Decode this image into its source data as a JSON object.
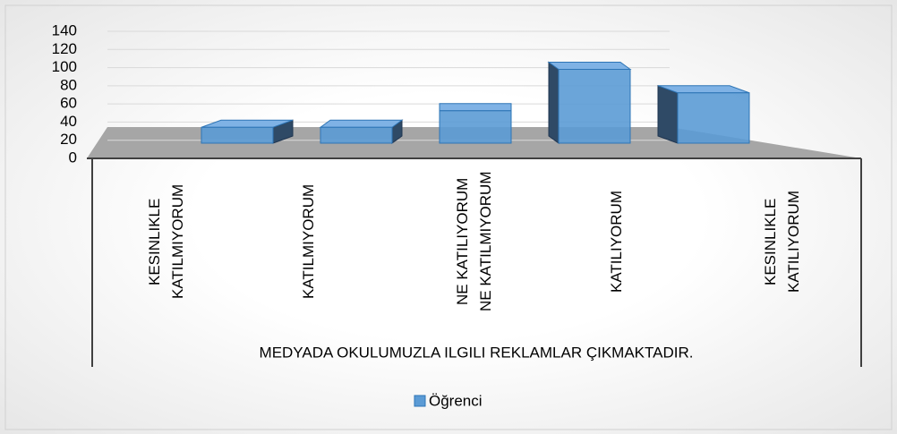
{
  "chart_data": {
    "type": "bar3d",
    "categories": [
      "KESINLIKLE KATILMIYORUM",
      "KATILMIYORUM",
      "NE KATILIYORUM NE KATILMIYORUM",
      "KATILIYORUM",
      "KESINLIKLE KATILIYORUM"
    ],
    "series": [
      {
        "name": "Öğrenci",
        "color": "#5b9bd5",
        "values": [
          23,
          23,
          47,
          107,
          73
        ]
      }
    ],
    "x_label": "MEDYADA OKULUMUZLA ILGILI REKLAMLAR ÇIKMAKTADIR.",
    "ylim": [
      0,
      140
    ],
    "yticks": [
      0,
      20,
      40,
      60,
      80,
      100,
      120,
      140
    ],
    "grid": true,
    "legend": "bottom"
  }
}
